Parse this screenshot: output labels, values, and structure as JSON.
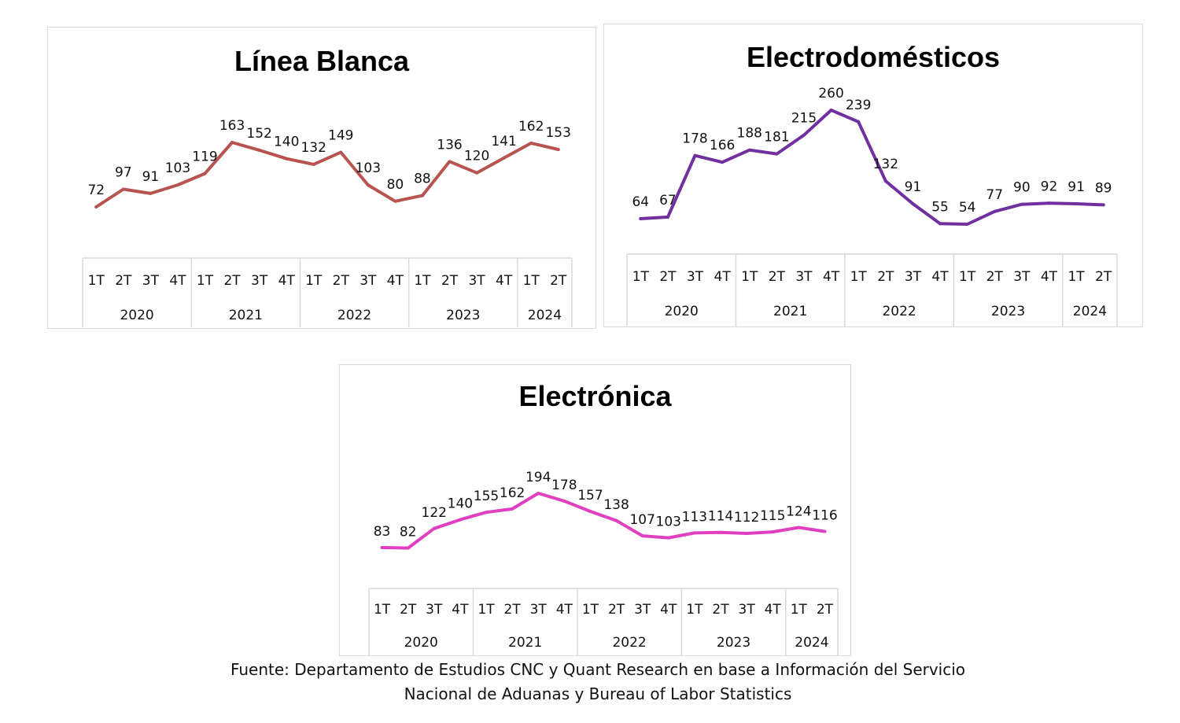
{
  "chart_data": [
    {
      "type": "line",
      "title": "Línea Blanca",
      "color": "#B85450",
      "quarters": [
        "1T",
        "2T",
        "3T",
        "4T",
        "1T",
        "2T",
        "3T",
        "4T",
        "1T",
        "2T",
        "3T",
        "4T",
        "1T",
        "2T",
        "3T",
        "4T",
        "1T",
        "2T"
      ],
      "years": [
        "2020",
        "2021",
        "2022",
        "2023",
        "2024"
      ],
      "values": [
        72,
        97,
        91,
        103,
        119,
        163,
        152,
        140,
        132,
        149,
        103,
        80,
        88,
        136,
        120,
        141,
        162,
        153
      ],
      "data_labels": [
        "72",
        "97",
        "91",
        "103",
        "119",
        "163",
        "152",
        "140",
        "132",
        "149",
        "103",
        "80",
        "88",
        "136",
        "120",
        "141",
        "162",
        "153"
      ]
    },
    {
      "type": "line",
      "title": "Electrodomésticos",
      "color": "#7030A0",
      "quarters": [
        "1T",
        "2T",
        "3T",
        "4T",
        "1T",
        "2T",
        "3T",
        "4T",
        "1T",
        "2T",
        "3T",
        "4T",
        "1T",
        "2T",
        "3T",
        "4T",
        "1T",
        "2T"
      ],
      "years": [
        "2020",
        "2021",
        "2022",
        "2023",
        "2024"
      ],
      "values": [
        64,
        67,
        178,
        166,
        188,
        181,
        215,
        260,
        239,
        132,
        91,
        55,
        54,
        77,
        90,
        92,
        91,
        89
      ],
      "data_labels": [
        "64",
        "67",
        "178",
        "166",
        "188",
        "181",
        "215",
        "260",
        "239",
        "132",
        "91",
        "55",
        "54",
        "77",
        "90",
        "92",
        "91",
        "89"
      ]
    },
    {
      "type": "line",
      "title": "Electrónica",
      "color": "#E040C0",
      "quarters": [
        "1T",
        "2T",
        "3T",
        "4T",
        "1T",
        "2T",
        "3T",
        "4T",
        "1T",
        "2T",
        "3T",
        "4T",
        "1T",
        "2T",
        "3T",
        "4T",
        "1T",
        "2T"
      ],
      "years": [
        "2020",
        "2021",
        "2022",
        "2023",
        "2024"
      ],
      "values": [
        83,
        82,
        122,
        140,
        155,
        162,
        194,
        178,
        157,
        138,
        107,
        103,
        113,
        114,
        112,
        115,
        124,
        116
      ],
      "data_labels": [
        "83",
        "82",
        "122",
        "140",
        "155",
        "162",
        "194",
        "178",
        "157",
        "138",
        "107",
        "103",
        "113",
        "114",
        "112",
        "115",
        "124",
        "116"
      ]
    }
  ],
  "source": {
    "line1": "Fuente: Departamento de Estudios CNC y Quant Research en base a Información del Servicio",
    "line2": "Nacional de Aduanas y Bureau of Labor Statistics"
  }
}
